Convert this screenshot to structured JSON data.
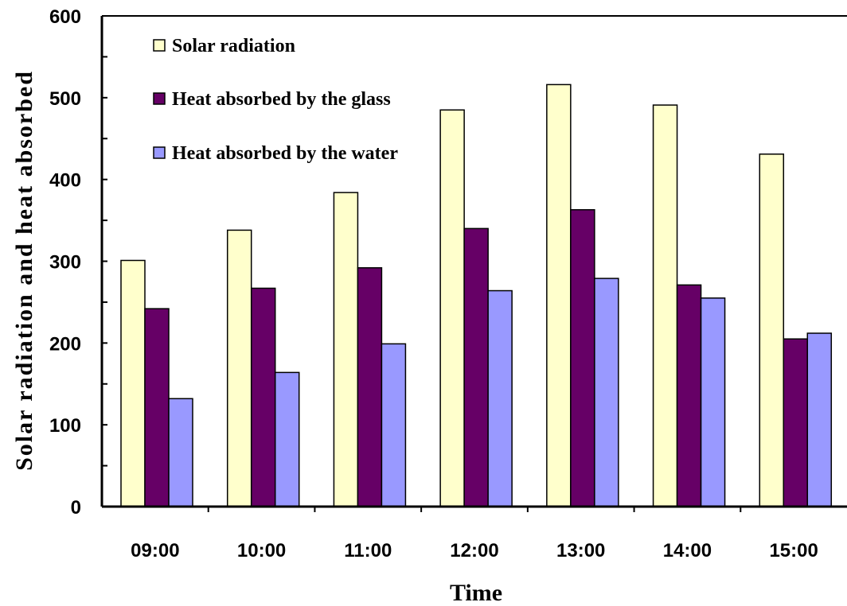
{
  "chart_data": {
    "type": "bar",
    "title": "",
    "xlabel": "Time",
    "ylabel": "Solar radiation and heat absorbed",
    "categories": [
      "09:00",
      "10:00",
      "11:00",
      "12:00",
      "13:00",
      "14:00",
      "15:00"
    ],
    "ylim": [
      0,
      600
    ],
    "yticks": [
      0,
      100,
      200,
      300,
      400,
      500,
      600
    ],
    "grid": false,
    "legend_position": "top-left",
    "series": [
      {
        "name": "Solar radiation",
        "color": "#ffffcc",
        "values": [
          301,
          338,
          384,
          485,
          516,
          491,
          431
        ]
      },
      {
        "name": "Heat absorbed by the glass",
        "color": "#660066",
        "values": [
          242,
          267,
          292,
          340,
          363,
          271,
          205
        ]
      },
      {
        "name": "Heat absorbed by the water",
        "color": "#9999ff",
        "values": [
          132,
          164,
          199,
          264,
          279,
          255,
          212
        ]
      }
    ]
  }
}
